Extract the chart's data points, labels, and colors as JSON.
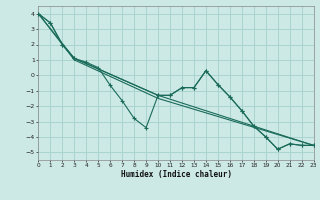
{
  "xlabel": "Humidex (Indice chaleur)",
  "bg_color": "#cce9e5",
  "grid_color": "#a8d4cf",
  "line_color": "#1a6b5a",
  "xlim": [
    0,
    23
  ],
  "ylim": [
    -5.5,
    4.5
  ],
  "xticks": [
    0,
    1,
    2,
    3,
    4,
    5,
    6,
    7,
    8,
    9,
    10,
    11,
    12,
    13,
    14,
    15,
    16,
    17,
    18,
    19,
    20,
    21,
    22,
    23
  ],
  "yticks": [
    -5,
    -4,
    -3,
    -2,
    -1,
    0,
    1,
    2,
    3,
    4
  ],
  "series": [
    {
      "x": [
        0,
        1,
        2,
        3,
        4,
        5,
        6,
        7,
        8,
        9,
        10,
        11,
        12,
        13,
        14,
        15,
        16,
        17,
        18,
        19,
        20,
        21,
        22,
        23
      ],
      "y": [
        4.0,
        3.4,
        2.0,
        1.1,
        0.85,
        0.5,
        -0.65,
        -1.65,
        -2.8,
        -3.4,
        -1.3,
        -1.3,
        -0.8,
        -0.8,
        0.3,
        -0.6,
        -1.4,
        -2.3,
        -3.3,
        -4.0,
        -4.8,
        -4.45,
        -4.55,
        -4.55
      ],
      "marker": true
    },
    {
      "x": [
        0,
        3,
        10,
        23
      ],
      "y": [
        4.0,
        1.1,
        -1.3,
        -4.55
      ],
      "marker": false
    },
    {
      "x": [
        0,
        3,
        10,
        23
      ],
      "y": [
        4.0,
        1.0,
        -1.5,
        -4.55
      ],
      "marker": false
    },
    {
      "x": [
        0,
        1,
        2,
        3,
        10,
        11,
        12,
        13,
        14,
        15,
        16,
        17,
        18,
        19,
        20,
        21,
        22,
        23
      ],
      "y": [
        4.0,
        3.4,
        2.0,
        1.1,
        -1.3,
        -1.3,
        -0.8,
        -0.8,
        0.3,
        -0.6,
        -1.4,
        -2.3,
        -3.3,
        -4.0,
        -4.8,
        -4.45,
        -4.55,
        -4.55
      ],
      "marker": true
    }
  ]
}
